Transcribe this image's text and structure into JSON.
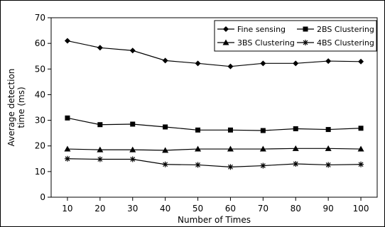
{
  "chart_data": {
    "type": "line",
    "title": "",
    "xlabel": "Number of Times",
    "ylabel": "Average detection time (ms)",
    "ylabel_lines": [
      "Average detection",
      "time (ms)"
    ],
    "x": [
      10,
      20,
      30,
      40,
      50,
      60,
      70,
      80,
      90,
      100
    ],
    "x_tick_labels": [
      "10",
      "20",
      "30",
      "40",
      "50",
      "60",
      "70",
      "80",
      "90",
      "100"
    ],
    "ylim": [
      0,
      70
    ],
    "y_ticks": [
      0,
      10,
      20,
      30,
      40,
      50,
      60,
      70
    ],
    "y_tick_labels": [
      "0",
      "10",
      "20",
      "30",
      "40",
      "50",
      "60",
      "70"
    ],
    "grid": false,
    "legend_position": "top-right",
    "series": [
      {
        "name": "Fine sensing",
        "marker": "diamond",
        "values": [
          61.0,
          58.3,
          57.2,
          53.3,
          52.2,
          51.0,
          52.2,
          52.2,
          53.1,
          52.9
        ]
      },
      {
        "name": "2BS Clustering",
        "marker": "square",
        "values": [
          30.9,
          28.3,
          28.5,
          27.4,
          26.2,
          26.2,
          26.0,
          26.7,
          26.4,
          26.9
        ]
      },
      {
        "name": "3BS Clustering",
        "marker": "triangle",
        "values": [
          18.8,
          18.5,
          18.5,
          18.3,
          18.8,
          18.8,
          18.8,
          19.0,
          19.0,
          18.8
        ]
      },
      {
        "name": "4BS Clustering",
        "marker": "asterisk",
        "values": [
          15.0,
          14.8,
          14.8,
          12.8,
          12.6,
          11.8,
          12.3,
          13.0,
          12.6,
          12.8
        ]
      }
    ]
  }
}
